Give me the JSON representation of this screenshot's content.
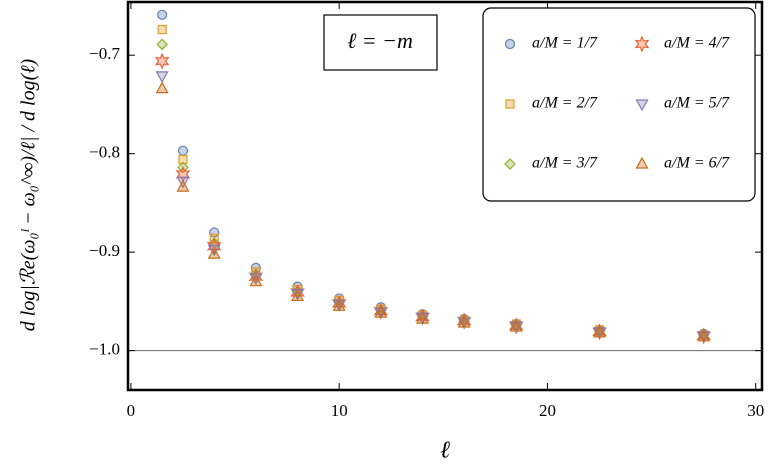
{
  "chart_data": {
    "type": "scatter",
    "x_label": "ℓ",
    "y_label": "d log|ℛe(ω₀ˡ − ω₀^∞)/ℓ| / d log(ℓ)",
    "annotation": "ℓ = −m",
    "x": [
      1.5,
      2.5,
      4,
      6,
      8,
      10,
      12,
      14,
      16,
      18.5,
      22.5,
      27.5
    ],
    "series": [
      {
        "name": "a/M = 1/7",
        "color": "#5e81b5",
        "marker": "circle",
        "values": [
          -0.659,
          -0.797,
          -0.88,
          -0.916,
          -0.935,
          -0.947,
          -0.956,
          -0.963,
          -0.968,
          -0.973,
          -0.979,
          -0.983
        ]
      },
      {
        "name": "a/M = 2/7",
        "color": "#e19c24",
        "marker": "square",
        "values": [
          -0.674,
          -0.806,
          -0.886,
          -0.92,
          -0.938,
          -0.949,
          -0.958,
          -0.964,
          -0.969,
          -0.973,
          -0.979,
          -0.984
        ]
      },
      {
        "name": "a/M = 3/7",
        "color": "#8fb032",
        "marker": "diamond",
        "values": [
          -0.689,
          -0.814,
          -0.891,
          -0.923,
          -0.94,
          -0.951,
          -0.959,
          -0.965,
          -0.97,
          -0.974,
          -0.98,
          -0.984
        ]
      },
      {
        "name": "a/M = 4/7",
        "color": "#eb6235",
        "marker": "star",
        "values": [
          -0.706,
          -0.821,
          -0.894,
          -0.925,
          -0.941,
          -0.952,
          -0.96,
          -0.966,
          -0.97,
          -0.975,
          -0.981,
          -0.985
        ]
      },
      {
        "name": "a/M = 5/7",
        "color": "#8778b3",
        "marker": "triangle-down",
        "values": [
          -0.721,
          -0.828,
          -0.897,
          -0.926,
          -0.942,
          -0.953,
          -0.961,
          -0.966,
          -0.971,
          -0.975,
          -0.981,
          -0.985
        ]
      },
      {
        "name": "a/M = 6/7",
        "color": "#c56e1a",
        "marker": "triangle-up",
        "values": [
          -0.734,
          -0.834,
          -0.902,
          -0.93,
          -0.945,
          -0.955,
          -0.962,
          -0.968,
          -0.972,
          -0.976,
          -0.982,
          -0.986
        ]
      }
    ],
    "reference_line": -1,
    "xlim": [
      -0.14,
      30.3
    ],
    "ylim": [
      -1.04,
      -0.646
    ],
    "xticks": [
      0,
      10,
      20,
      30
    ],
    "yticks": [
      {
        "value": -0.7,
        "label": "−0.7"
      },
      {
        "value": -0.8,
        "label": "−0.8"
      },
      {
        "value": -0.9,
        "label": "−0.9"
      },
      {
        "value": -1.0,
        "label": "−1.0"
      }
    ],
    "legend": "upper right",
    "grid": false
  }
}
